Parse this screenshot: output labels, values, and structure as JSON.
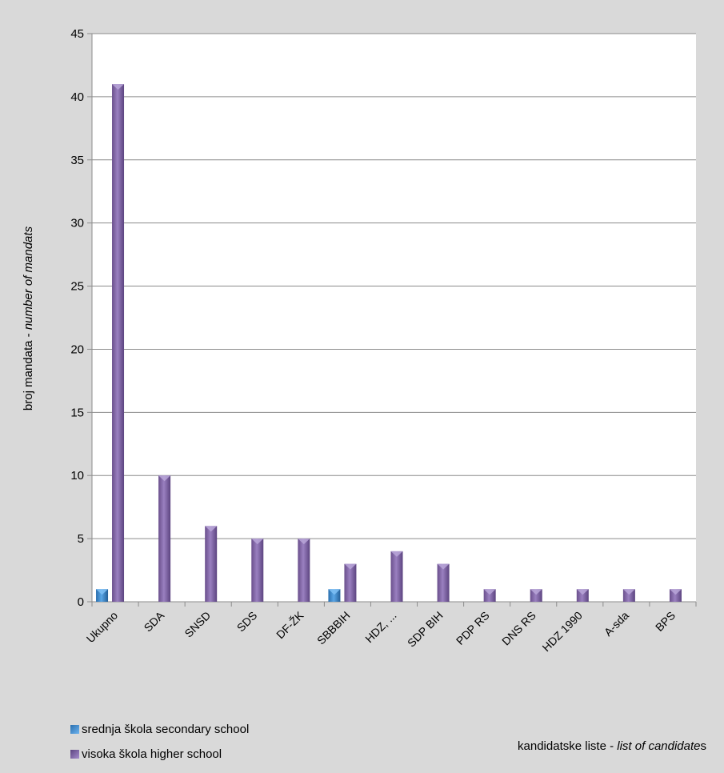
{
  "chart_data": {
    "type": "bar",
    "categories": [
      "Ukupno",
      "SDA",
      "SNSD",
      "SDS",
      "DF-ŽK",
      "SBBBIH",
      "HDZ, ...",
      "SDP BIH",
      "PDP RS",
      "DNS RS",
      "HDZ 1990",
      "A-sda",
      "BPS"
    ],
    "series": [
      {
        "name": "srednja škola secondary school",
        "color": "#3f8fd2",
        "values": [
          1,
          0,
          0,
          0,
          0,
          1,
          0,
          0,
          0,
          0,
          0,
          0,
          0
        ]
      },
      {
        "name": "visoka škola higher school",
        "color": "#8064a2",
        "values": [
          41,
          10,
          6,
          5,
          5,
          3,
          4,
          3,
          1,
          1,
          1,
          1,
          1
        ]
      }
    ],
    "ylim": [
      0,
      45
    ],
    "yticks": [
      0,
      5,
      10,
      15,
      20,
      25,
      30,
      35,
      40,
      45
    ],
    "ylabel_normal": "broj mandata - ",
    "ylabel_italic": "number of mandats",
    "xlabel_normal": "kandidatske liste - ",
    "xlabel_italic": "list of candidate",
    "xlabel_suffix": "s",
    "grid": true,
    "legend_position": "bottom-left"
  }
}
